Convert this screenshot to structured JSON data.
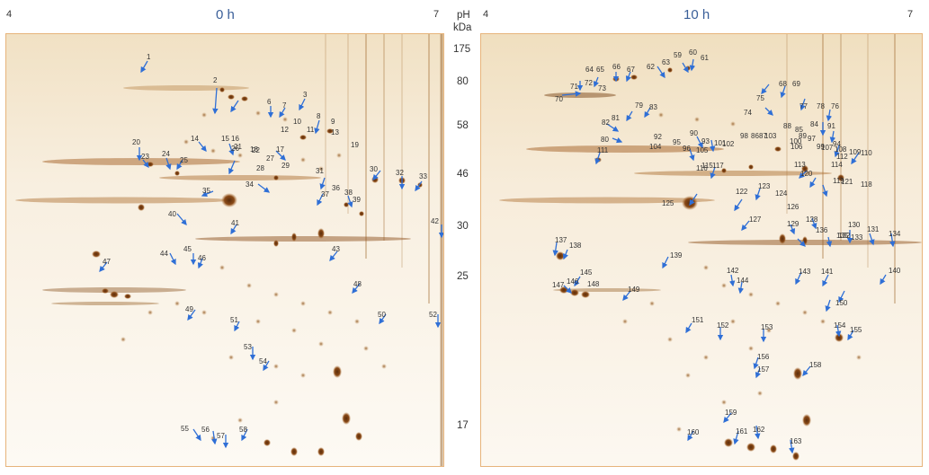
{
  "panels": [
    {
      "id": "left",
      "title": "0 h",
      "ph_start": "4",
      "ph_end": "7"
    },
    {
      "id": "right",
      "title": "10 h",
      "ph_start": "4",
      "ph_end": "7"
    }
  ],
  "axis": {
    "ph_label": "pH",
    "kda_label": "kDa",
    "markers": [
      "175",
      "80",
      "58",
      "46",
      "30",
      "25",
      "17"
    ]
  },
  "spots_left": [
    "1",
    "2",
    "3",
    "4",
    "5",
    "6",
    "7",
    "8",
    "9",
    "10",
    "11",
    "12",
    "13",
    "14",
    "15",
    "16",
    "17",
    "18",
    "19",
    "20",
    "21",
    "22",
    "23",
    "24",
    "25",
    "26",
    "27",
    "28",
    "29",
    "30",
    "31",
    "32",
    "33",
    "34",
    "35",
    "36",
    "37",
    "38",
    "39",
    "40",
    "41",
    "42",
    "43",
    "44",
    "45",
    "46",
    "47",
    "48",
    "49",
    "50",
    "51",
    "52",
    "53",
    "54",
    "55",
    "56",
    "57",
    "58"
  ],
  "spots_right": [
    "59",
    "60",
    "61",
    "62",
    "63",
    "64",
    "65",
    "66",
    "67",
    "68",
    "69",
    "70",
    "71",
    "72",
    "73",
    "74",
    "75",
    "76",
    "77",
    "78",
    "79",
    "80",
    "81",
    "82",
    "83",
    "84",
    "85",
    "86",
    "87",
    "88",
    "89",
    "90",
    "91",
    "92",
    "93",
    "94",
    "95",
    "96",
    "97",
    "98",
    "99",
    "100",
    "101",
    "102",
    "103",
    "104",
    "105",
    "106",
    "107",
    "108",
    "109",
    "110",
    "111",
    "112",
    "113",
    "114",
    "115",
    "116",
    "117",
    "118",
    "119",
    "120",
    "121",
    "122",
    "123",
    "124",
    "125",
    "126",
    "127",
    "128",
    "129",
    "130",
    "131",
    "132",
    "133",
    "134",
    "135",
    "136",
    "137",
    "138",
    "139",
    "140",
    "141",
    "142",
    "143",
    "144",
    "145",
    "146",
    "147",
    "148",
    "149",
    "150",
    "151",
    "152",
    "153",
    "154",
    "155",
    "156",
    "157",
    "158",
    "159",
    "160",
    "161",
    "162",
    "163"
  ],
  "colors": {
    "arrow": "#2f6fd6",
    "border": "#e7b47b",
    "title": "#3a5f99"
  }
}
